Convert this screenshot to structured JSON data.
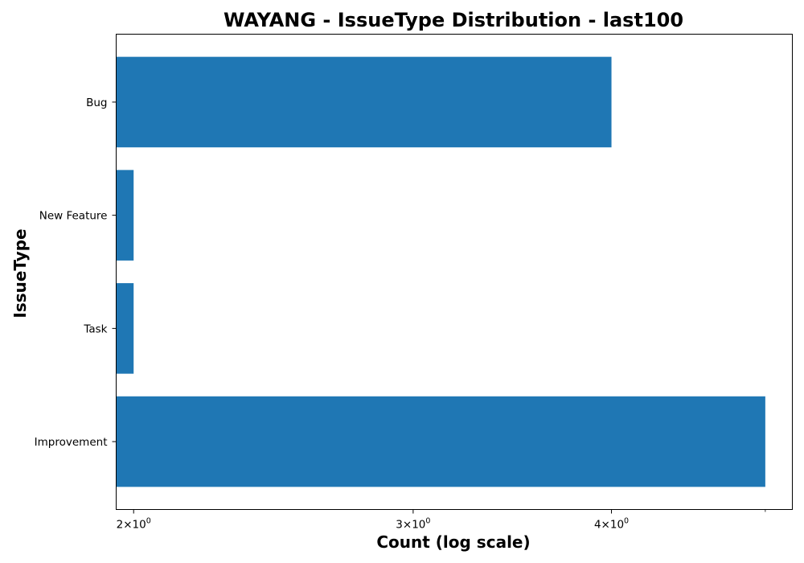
{
  "chart_data": {
    "type": "bar",
    "orientation": "horizontal",
    "title": "WAYANG - IssueType Distribution - last100",
    "xlabel": "Count (log scale)",
    "ylabel": "IssueType",
    "xscale": "log",
    "xlim": [
      1.95,
      5.2
    ],
    "categories": [
      "Bug",
      "New Feature",
      "Task",
      "Improvement"
    ],
    "values": [
      4,
      2,
      2,
      5
    ],
    "xticks": [
      {
        "value": 2,
        "mantissa": "2",
        "times": "×",
        "base": "10",
        "exponent": "0"
      },
      {
        "value": 3,
        "mantissa": "3",
        "times": "×",
        "base": "10",
        "exponent": "0"
      },
      {
        "value": 4,
        "mantissa": "4",
        "times": "×",
        "base": "10",
        "exponent": "0"
      }
    ],
    "minor_xticks": [
      5
    ],
    "bar_color": "#1f77b4",
    "grid": false,
    "legend": "none"
  }
}
